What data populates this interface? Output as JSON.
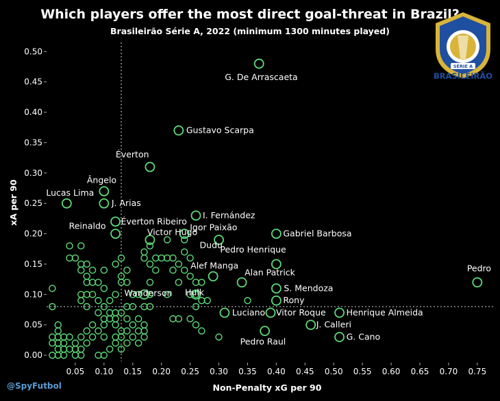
{
  "title": "Which players offer the most direct goal-threat in Brazil?",
  "subtitle": "Brasileirão Série A, 2022 (minimum 1300 minutes played)",
  "credit": "@SpyFutbol",
  "logo": {
    "label": "BRASILEIRÃO",
    "badge_text": "SÉRIE A"
  },
  "colors": {
    "marker": "#5fdc7a",
    "guide": "#aaaaaa",
    "axis_text": "#ffffff",
    "background": "#000000",
    "logo_blue": "#1f4fa0",
    "logo_gold": "#d9b43a"
  },
  "chart_data": {
    "type": "scatter",
    "title": "Which players offer the most direct goal-threat in Brazil?",
    "xlabel": "Non-Penalty xG per 90",
    "ylabel": "xA per 90",
    "xlim": [
      0.0,
      0.78
    ],
    "ylim": [
      -0.01,
      0.515
    ],
    "xticks": [
      "0.05",
      "0.10",
      "0.15",
      "0.20",
      "0.25",
      "0.30",
      "0.35",
      "0.40",
      "0.45",
      "0.50",
      "0.55",
      "0.60",
      "0.65",
      "0.70",
      "0.75"
    ],
    "yticks": [
      "0.00",
      "0.05",
      "0.10",
      "0.15",
      "0.20",
      "0.25",
      "0.30",
      "0.35",
      "0.40",
      "0.45",
      "0.50"
    ],
    "reference_lines": {
      "x_mean": 0.13,
      "y_mean": 0.08
    },
    "grid": false,
    "labeled_points": [
      {
        "name": "G. De Arrascaeta",
        "x": 0.37,
        "y": 0.48
      },
      {
        "name": "Gustavo Scarpa",
        "x": 0.23,
        "y": 0.37
      },
      {
        "name": "Éverton",
        "x": 0.18,
        "y": 0.31
      },
      {
        "name": "Ângelo",
        "x": 0.1,
        "y": 0.27
      },
      {
        "name": "Lucas Lima",
        "x": 0.035,
        "y": 0.25
      },
      {
        "name": "J. Arias",
        "x": 0.1,
        "y": 0.25
      },
      {
        "name": "I. Fernández",
        "x": 0.26,
        "y": 0.23
      },
      {
        "name": "Éverton Ribeiro",
        "x": 0.12,
        "y": 0.22
      },
      {
        "name": "Reinaldo",
        "x": 0.12,
        "y": 0.2
      },
      {
        "name": "Victor Hugo",
        "x": 0.18,
        "y": 0.19
      },
      {
        "name": "Igor Paixão",
        "x": 0.24,
        "y": 0.2
      },
      {
        "name": "Gabriel Barbosa",
        "x": 0.4,
        "y": 0.2
      },
      {
        "name": "Dudu",
        "x": 0.3,
        "y": 0.19
      },
      {
        "name": "Pedro Henrique",
        "x": 0.4,
        "y": 0.15
      },
      {
        "name": "Alef Manga",
        "x": 0.29,
        "y": 0.13
      },
      {
        "name": "Alan Patrick",
        "x": 0.34,
        "y": 0.12
      },
      {
        "name": "Pedro",
        "x": 0.75,
        "y": 0.12
      },
      {
        "name": "Wanderson",
        "x": 0.17,
        "y": 0.1
      },
      {
        "name": "S. Mendoza",
        "x": 0.4,
        "y": 0.11
      },
      {
        "name": "Hulk",
        "x": 0.26,
        "y": 0.1
      },
      {
        "name": "Rony",
        "x": 0.4,
        "y": 0.09
      },
      {
        "name": "Luciano",
        "x": 0.31,
        "y": 0.07
      },
      {
        "name": "Vitor Roque",
        "x": 0.39,
        "y": 0.07
      },
      {
        "name": "Henrique Almeida",
        "x": 0.51,
        "y": 0.07
      },
      {
        "name": "J. Calleri",
        "x": 0.46,
        "y": 0.05
      },
      {
        "name": "G. Cano",
        "x": 0.51,
        "y": 0.03
      },
      {
        "name": "Pedro Raul",
        "x": 0.38,
        "y": 0.04
      }
    ],
    "other_points": [
      [
        0.01,
        0.11
      ],
      [
        0.01,
        0.08
      ],
      [
        0.04,
        0.18
      ],
      [
        0.06,
        0.18
      ],
      [
        0.05,
        0.16
      ],
      [
        0.07,
        0.15
      ],
      [
        0.06,
        0.15
      ],
      [
        0.04,
        0.16
      ],
      [
        0.06,
        0.14
      ],
      [
        0.08,
        0.14
      ],
      [
        0.09,
        0.12
      ],
      [
        0.07,
        0.13
      ],
      [
        0.07,
        0.12
      ],
      [
        0.08,
        0.12
      ],
      [
        0.06,
        0.1
      ],
      [
        0.07,
        0.1
      ],
      [
        0.1,
        0.14
      ],
      [
        0.1,
        0.11
      ],
      [
        0.12,
        0.1
      ],
      [
        0.08,
        0.1
      ],
      [
        0.07,
        0.08
      ],
      [
        0.06,
        0.09
      ],
      [
        0.09,
        0.07
      ],
      [
        0.1,
        0.08
      ],
      [
        0.11,
        0.07
      ],
      [
        0.12,
        0.07
      ],
      [
        0.13,
        0.07
      ],
      [
        0.11,
        0.06
      ],
      [
        0.12,
        0.06
      ],
      [
        0.1,
        0.05
      ],
      [
        0.09,
        0.04
      ],
      [
        0.07,
        0.04
      ],
      [
        0.08,
        0.05
      ],
      [
        0.06,
        0.03
      ],
      [
        0.07,
        0.02
      ],
      [
        0.08,
        0.03
      ],
      [
        0.05,
        0.02
      ],
      [
        0.04,
        0.03
      ],
      [
        0.03,
        0.02
      ],
      [
        0.02,
        0.03
      ],
      [
        0.01,
        0.02
      ],
      [
        0.02,
        0.01
      ],
      [
        0.03,
        0.01
      ],
      [
        0.04,
        0.01
      ],
      [
        0.05,
        0.01
      ],
      [
        0.06,
        0.01
      ],
      [
        0.02,
        0.0
      ],
      [
        0.01,
        0.0
      ],
      [
        0.03,
        0.0
      ],
      [
        0.05,
        0.0
      ],
      [
        0.06,
        0.0
      ],
      [
        0.09,
        0.0
      ],
      [
        0.1,
        0.0
      ],
      [
        0.01,
        0.03
      ],
      [
        0.02,
        0.04
      ],
      [
        0.02,
        0.05
      ],
      [
        0.02,
        0.02
      ],
      [
        0.03,
        0.03
      ],
      [
        0.1,
        0.03
      ],
      [
        0.12,
        0.03
      ],
      [
        0.13,
        0.03
      ],
      [
        0.14,
        0.04
      ],
      [
        0.15,
        0.03
      ],
      [
        0.13,
        0.04
      ],
      [
        0.12,
        0.15
      ],
      [
        0.13,
        0.16
      ],
      [
        0.14,
        0.14
      ],
      [
        0.13,
        0.13
      ],
      [
        0.13,
        0.12
      ],
      [
        0.14,
        0.12
      ],
      [
        0.15,
        0.1
      ],
      [
        0.16,
        0.1
      ],
      [
        0.14,
        0.08
      ],
      [
        0.15,
        0.08
      ],
      [
        0.16,
        0.06
      ],
      [
        0.17,
        0.08
      ],
      [
        0.18,
        0.08
      ],
      [
        0.18,
        0.1
      ],
      [
        0.17,
        0.05
      ],
      [
        0.17,
        0.04
      ],
      [
        0.17,
        0.16
      ],
      [
        0.17,
        0.17
      ],
      [
        0.18,
        0.18
      ],
      [
        0.18,
        0.12
      ],
      [
        0.18,
        0.15
      ],
      [
        0.19,
        0.14
      ],
      [
        0.19,
        0.16
      ],
      [
        0.2,
        0.16
      ],
      [
        0.21,
        0.19
      ],
      [
        0.21,
        0.16
      ],
      [
        0.22,
        0.14
      ],
      [
        0.22,
        0.16
      ],
      [
        0.23,
        0.15
      ],
      [
        0.24,
        0.17
      ],
      [
        0.24,
        0.14
      ],
      [
        0.23,
        0.12
      ],
      [
        0.24,
        0.19
      ],
      [
        0.25,
        0.16
      ],
      [
        0.25,
        0.13
      ],
      [
        0.26,
        0.12
      ],
      [
        0.26,
        0.1
      ],
      [
        0.27,
        0.12
      ],
      [
        0.26,
        0.08
      ],
      [
        0.27,
        0.09
      ],
      [
        0.28,
        0.09
      ],
      [
        0.21,
        0.1
      ],
      [
        0.25,
        0.1
      ],
      [
        0.22,
        0.06
      ],
      [
        0.23,
        0.06
      ],
      [
        0.25,
        0.06
      ],
      [
        0.26,
        0.05
      ],
      [
        0.27,
        0.04
      ],
      [
        0.3,
        0.03
      ],
      [
        0.35,
        0.09
      ],
      [
        0.17,
        0.03
      ],
      [
        0.16,
        0.04
      ],
      [
        0.14,
        0.06
      ],
      [
        0.15,
        0.05
      ],
      [
        0.16,
        0.02
      ],
      [
        0.14,
        0.02
      ],
      [
        0.11,
        0.01
      ],
      [
        0.12,
        0.02
      ],
      [
        0.13,
        0.01
      ],
      [
        0.1,
        0.06
      ],
      [
        0.09,
        0.09
      ],
      [
        0.11,
        0.09
      ],
      [
        0.12,
        0.05
      ]
    ]
  }
}
